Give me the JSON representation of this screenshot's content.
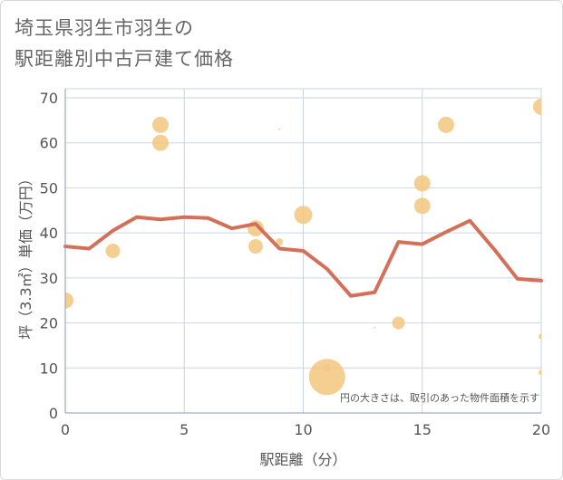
{
  "title_line1": "埼玉県羽生市羽生の",
  "title_line2": "駅距離別中古戸建て価格",
  "chart_data": {
    "type": "scatter",
    "xlabel": "駅距離（分）",
    "ylabel": "坪（3.3㎡）単価（万円）",
    "xlim": [
      0,
      20
    ],
    "ylim": [
      0,
      70
    ],
    "xticks": [
      0,
      5,
      10,
      15,
      20
    ],
    "yticks": [
      0,
      10,
      20,
      30,
      40,
      50,
      60,
      70
    ],
    "note": "円の大きさは、取引のあった物件面積を示す",
    "colors": {
      "bubble": "#f3c77f",
      "line": "#d4705a",
      "grid": "#c9d6e6"
    },
    "bubbles": [
      {
        "x": 0,
        "y": 25,
        "size": 9
      },
      {
        "x": 2,
        "y": 36,
        "size": 8
      },
      {
        "x": 4,
        "y": 64,
        "size": 9
      },
      {
        "x": 4,
        "y": 60,
        "size": 9
      },
      {
        "x": 8,
        "y": 41,
        "size": 9
      },
      {
        "x": 8,
        "y": 37,
        "size": 8
      },
      {
        "x": 9,
        "y": 38,
        "size": 4
      },
      {
        "x": 9,
        "y": 63,
        "size": 1
      },
      {
        "x": 10,
        "y": 44,
        "size": 10
      },
      {
        "x": 11,
        "y": 8,
        "size": 20
      },
      {
        "x": 11,
        "y": 10,
        "size": 4
      },
      {
        "x": 13,
        "y": 19,
        "size": 1
      },
      {
        "x": 14,
        "y": 20,
        "size": 7
      },
      {
        "x": 15,
        "y": 51,
        "size": 9
      },
      {
        "x": 15,
        "y": 46,
        "size": 9
      },
      {
        "x": 16,
        "y": 64,
        "size": 9
      },
      {
        "x": 20,
        "y": 68,
        "size": 9
      },
      {
        "x": 20,
        "y": 17,
        "size": 3
      },
      {
        "x": 20,
        "y": 9,
        "size": 3
      }
    ],
    "trend_line": {
      "x": [
        0,
        1,
        2,
        3,
        4,
        5,
        6,
        7,
        8,
        9,
        10,
        11,
        12,
        13,
        14,
        15,
        16,
        17,
        18,
        19,
        20
      ],
      "y": [
        37,
        36.5,
        40.5,
        43.5,
        43,
        43.5,
        43.3,
        41,
        42,
        36.5,
        36,
        32,
        26,
        26.8,
        38,
        37.5,
        40.2,
        42.7,
        36.5,
        29.8,
        29.4
      ]
    }
  }
}
